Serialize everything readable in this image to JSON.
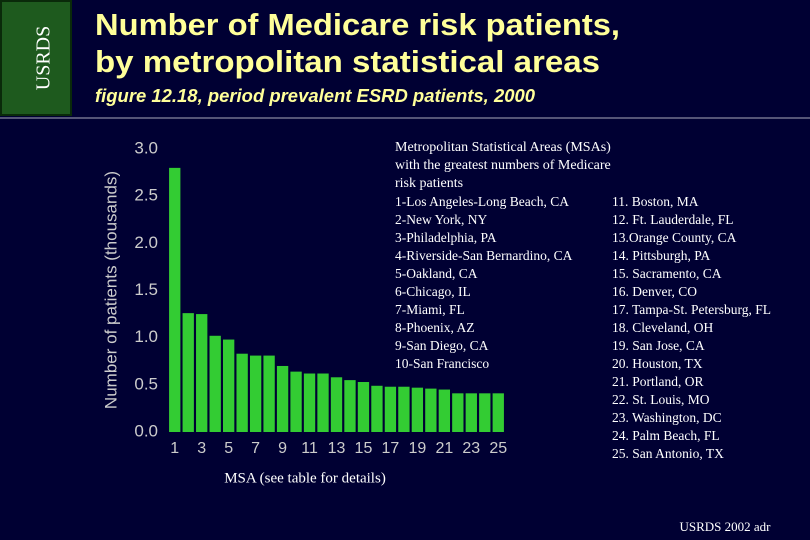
{
  "chart_data": {
    "type": "bar",
    "sidebar": "USRDS",
    "title": [
      "Number of Medicare risk patients,",
      "by metropolitan statistical areas"
    ],
    "subtitle": "figure 12.18, period prevalent ESRD patients, 2000",
    "y_label": "Number of patients (thousands)",
    "x_label": "MSA (see table for details)",
    "footer": "USRDS 2002 adr",
    "color": "#33cc33",
    "categories": [
      "1",
      null,
      "3",
      null,
      "5",
      null,
      "7",
      null,
      "9",
      null,
      "11",
      null,
      "13",
      null,
      "15",
      null,
      "17",
      null,
      "19",
      null,
      "21",
      null,
      "23",
      null,
      "25"
    ],
    "values": [
      2.8,
      1.26,
      1.25,
      1.02,
      0.98,
      0.83,
      0.81,
      0.81,
      0.7,
      0.64,
      0.62,
      0.62,
      0.58,
      0.55,
      0.53,
      0.49,
      0.48,
      0.48,
      0.47,
      0.46,
      0.45,
      0.41,
      0.41,
      0.41,
      0.41
    ],
    "ylim": [
      0,
      3
    ],
    "yticks": [
      {
        "value": 0,
        "label": "0.0"
      },
      0.5,
      {
        "value": 1,
        "label": "1.0"
      },
      1.5,
      {
        "value": 2,
        "label": "2.0"
      },
      2.5,
      {
        "value": 3,
        "label": "3.0"
      }
    ],
    "table": {
      "title": [
        "Metropolitan Statistical Areas (MSAs)",
        "with the greatest numbers of Medicare",
        "risk patients"
      ],
      "left": [
        "1-Los Angeles-Long Beach, CA",
        "2-New York, NY",
        "3-Philadelphia, PA",
        "4-Riverside-San Bernardino, CA",
        "5-Oakland, CA",
        "6-Chicago, IL",
        "7-Miami, FL",
        "8-Phoenix, AZ",
        "9-San Diego, CA",
        "10-San Francisco"
      ],
      "right": [
        "11. Boston, MA",
        "12. Ft. Lauderdale, FL",
        "13.Orange County, CA",
        "14. Pittsburgh, PA",
        "15. Sacramento, CA",
        "16. Denver, CO",
        "17. Tampa-St. Petersburg, FL",
        "18. Cleveland, OH",
        "19. San Jose, CA",
        "20. Houston, TX",
        "21. Portland, OR",
        "22. St. Louis, MO",
        "23. Washington, DC",
        "24. Palm Beach, FL",
        "25. San Antonio, TX"
      ]
    }
  }
}
